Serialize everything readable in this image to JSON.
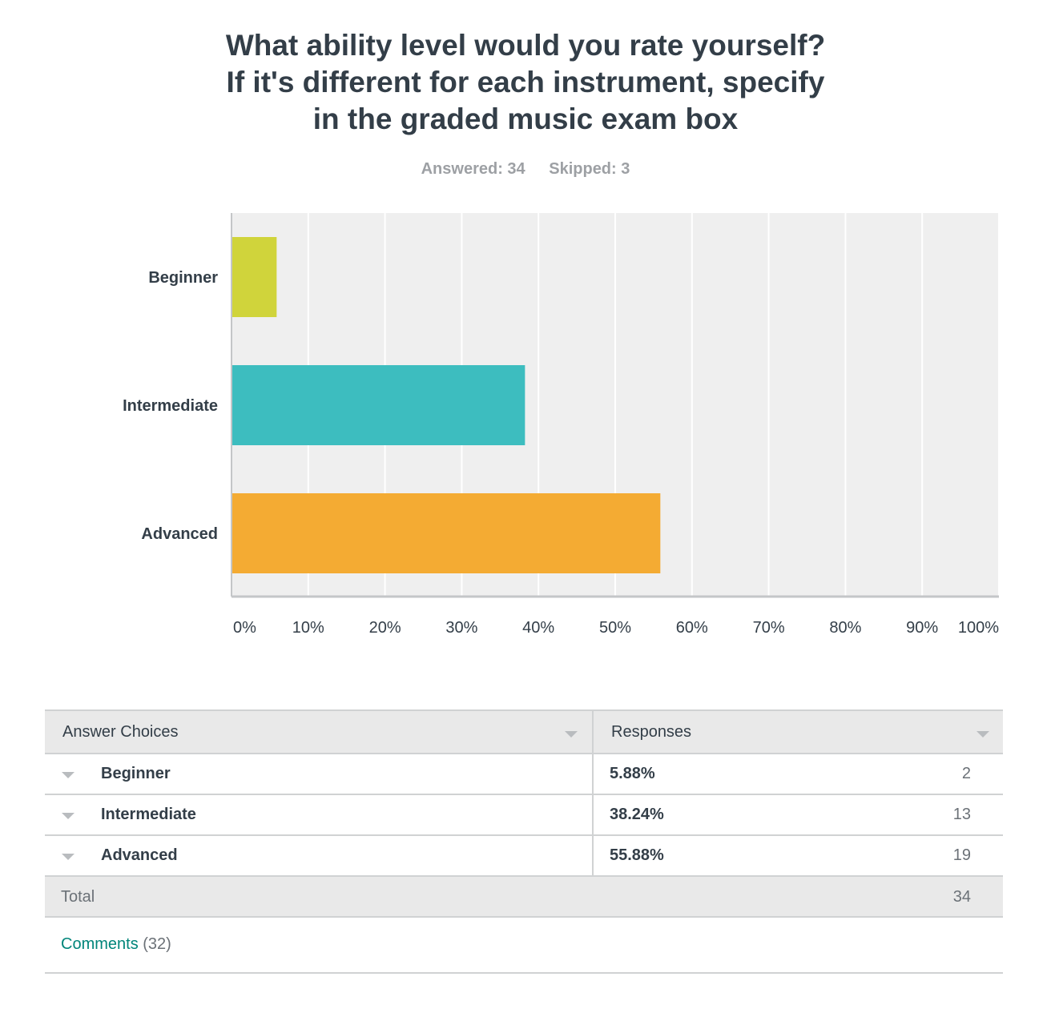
{
  "title_lines": [
    "What ability level would you rate yourself?",
    "If it's different for each instrument, specify",
    "in the graded music exam box"
  ],
  "stats": {
    "answered": "Answered: 34",
    "skipped": "Skipped: 3"
  },
  "chart_data": {
    "type": "bar",
    "orientation": "horizontal",
    "categories": [
      "Beginner",
      "Intermediate",
      "Advanced"
    ],
    "values": [
      5.88,
      38.24,
      55.88
    ],
    "colors": [
      "#d0d43b",
      "#3dbdbf",
      "#f4ab33"
    ],
    "xlim": [
      0,
      100
    ],
    "x_ticks": [
      "0%",
      "10%",
      "20%",
      "30%",
      "40%",
      "50%",
      "60%",
      "70%",
      "80%",
      "90%",
      "100%"
    ],
    "grid": true,
    "plot_background": "#efefef"
  },
  "table": {
    "header": {
      "choices": "Answer Choices",
      "responses": "Responses"
    },
    "rows": [
      {
        "choice": "Beginner",
        "percent": "5.88%",
        "count": "2"
      },
      {
        "choice": "Intermediate",
        "percent": "38.24%",
        "count": "13"
      },
      {
        "choice": "Advanced",
        "percent": "55.88%",
        "count": "19"
      }
    ],
    "total": {
      "label": "Total",
      "count": "34"
    },
    "comments": {
      "label": "Comments",
      "count": "(32)"
    }
  },
  "colors": {
    "text": "#333e48",
    "muted": "#9da0a4",
    "link": "#00857a",
    "grid_bg": "#efefef"
  }
}
